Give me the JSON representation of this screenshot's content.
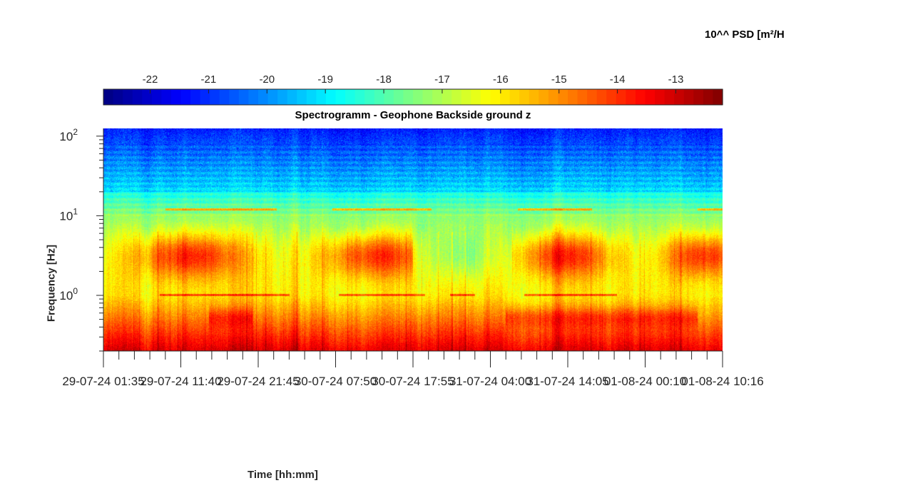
{
  "chart_data": {
    "type": "heatmap",
    "title": "Spectrogramm - Geophone Backside ground z",
    "xlabel": "Time [hh:mm]",
    "ylabel": "Frequency [Hz]",
    "colorbar_label": "10^^ PSD [m²/H",
    "colormap": "jet",
    "colorbar_ticks": [
      -22,
      -21,
      -20,
      -19,
      -18,
      -17,
      -16,
      -15,
      -14,
      -13
    ],
    "colorbar_range": [
      -22.8,
      -12.2
    ],
    "y_scale": "log",
    "ylim": [
      0.2,
      125
    ],
    "y_major_ticks": [
      {
        "value": 1,
        "base": "10",
        "exp": "0"
      },
      {
        "value": 10,
        "base": "10",
        "exp": "1"
      },
      {
        "value": 100,
        "base": "10",
        "exp": "2"
      }
    ],
    "x_tick_labels": [
      "29-07-24 01:35",
      "29-07-24 11:40",
      "29-07-24 21:45",
      "30-07-24 07:50",
      "30-07-24 17:55",
      "31-07-24 04:00",
      "31-07-24 14:05",
      "01-08-24 00:10",
      "01-08-24 10:16"
    ],
    "x_minor_ticks_per_interval": 5,
    "features": {
      "narrowband_lines_hz": [
        12,
        1.0
      ],
      "active_periods": [
        "29-07-24 daytime",
        "30-07-24 daytime",
        "31-07-24 daytime",
        "01-08-24 daytime"
      ],
      "dominant_band_hz": [
        0.2,
        8
      ]
    }
  },
  "colors": {
    "axis": "#262626",
    "background": "#ffffff"
  }
}
